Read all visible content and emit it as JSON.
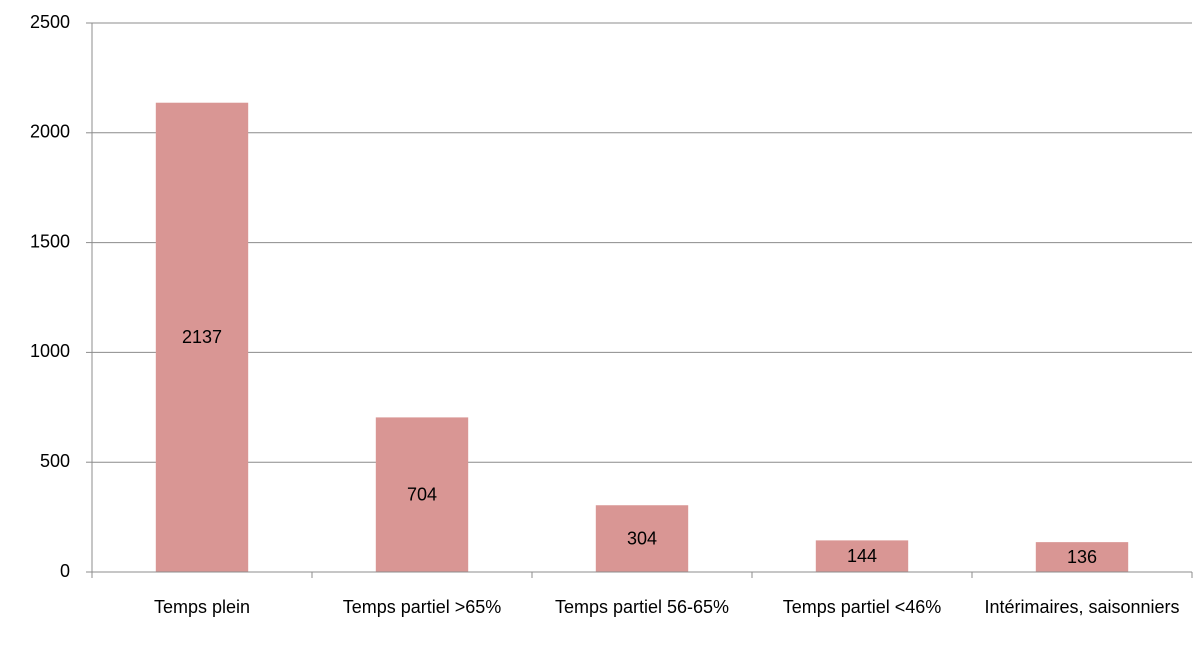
{
  "chart_data": {
    "type": "bar",
    "categories": [
      "Temps plein",
      "Temps partiel >65%",
      "Temps partiel 56-65%",
      "Temps partiel <46%",
      "Intérimaires, saisonniers"
    ],
    "values": [
      2137,
      704,
      304,
      144,
      136
    ],
    "color": "#d99694",
    "ylim": [
      0,
      2500
    ],
    "yticks": [
      0,
      500,
      1000,
      1500,
      2000,
      2500
    ],
    "grid": true
  }
}
